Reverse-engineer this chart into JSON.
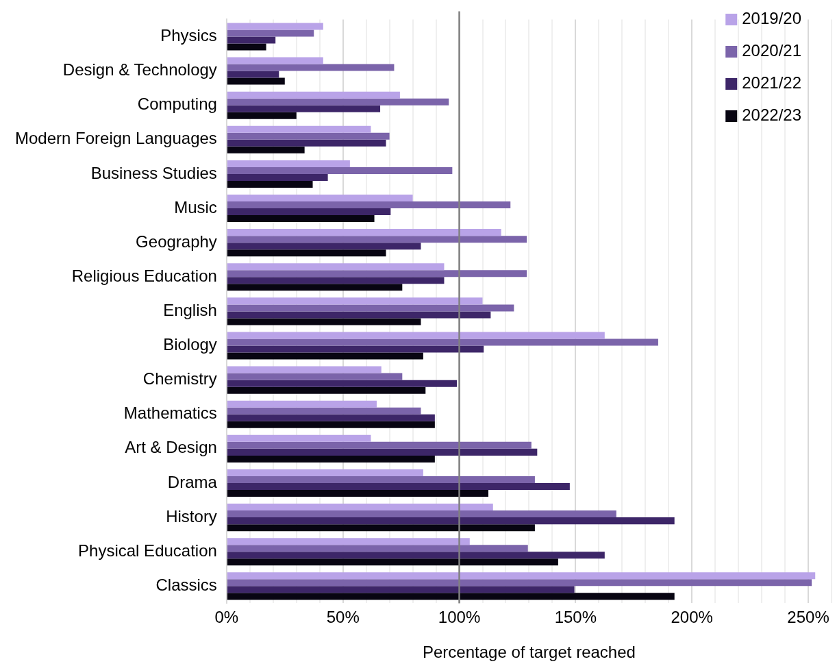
{
  "chart_data": {
    "type": "bar",
    "orientation": "horizontal",
    "xlabel": "Percentage of target reached",
    "categories": [
      "Physics",
      "Design & Technology",
      "Computing",
      "Modern Foreign Languages",
      "Business Studies",
      "Music",
      "Geography",
      "Religious Education",
      "English",
      "Biology",
      "Chemistry",
      "Mathematics",
      "Art & Design",
      "Drama",
      "History",
      "Physical Education",
      "Classics"
    ],
    "series": [
      {
        "name": "2019/20",
        "color": "#b9a3e8",
        "values": [
          41.5,
          41.5,
          74.5,
          62,
          53,
          80,
          118,
          93.5,
          110,
          162.5,
          66.5,
          64.5,
          62,
          84.5,
          114.5,
          104.5,
          253
        ]
      },
      {
        "name": "2020/21",
        "color": "#7b64aa",
        "values": [
          37.5,
          72,
          95.5,
          70,
          97,
          122,
          129,
          129,
          123.5,
          185.5,
          75.5,
          83.5,
          131,
          132.5,
          167.5,
          129.5,
          251.5
        ]
      },
      {
        "name": "2021/22",
        "color": "#3d2668",
        "values": [
          21,
          22.5,
          66,
          68.5,
          43.5,
          70.5,
          83.5,
          93.5,
          113.5,
          110.5,
          99,
          89.5,
          133.5,
          147.5,
          192.5,
          162.5,
          149.5
        ]
      },
      {
        "name": "2022/23",
        "color": "#080512",
        "values": [
          17,
          25,
          30,
          33.5,
          37,
          63.5,
          68.5,
          75.5,
          83.5,
          84.5,
          85.5,
          89.5,
          89.5,
          112.5,
          132.5,
          142.5,
          192.5
        ]
      }
    ],
    "xlim": [
      0,
      260
    ],
    "xticks": [
      {
        "value": 0,
        "label": "0%"
      },
      {
        "value": 10,
        "label": null
      },
      {
        "value": 20,
        "label": null
      },
      {
        "value": 30,
        "label": null
      },
      {
        "value": 40,
        "label": null
      },
      {
        "value": 50,
        "label": "50%"
      },
      {
        "value": 60,
        "label": null
      },
      {
        "value": 70,
        "label": null
      },
      {
        "value": 80,
        "label": null
      },
      {
        "value": 90,
        "label": null
      },
      {
        "value": 100,
        "label": "100%"
      },
      {
        "value": 110,
        "label": null
      },
      {
        "value": 120,
        "label": null
      },
      {
        "value": 130,
        "label": null
      },
      {
        "value": 140,
        "label": null
      },
      {
        "value": 150,
        "label": "150%"
      },
      {
        "value": 160,
        "label": null
      },
      {
        "value": 170,
        "label": null
      },
      {
        "value": 180,
        "label": null
      },
      {
        "value": 190,
        "label": null
      },
      {
        "value": 200,
        "label": "200%"
      },
      {
        "value": 210,
        "label": null
      },
      {
        "value": 220,
        "label": null
      },
      {
        "value": 230,
        "label": null
      },
      {
        "value": 240,
        "label": null
      },
      {
        "value": 250,
        "label": "250%"
      },
      {
        "value": 260,
        "label": null
      }
    ],
    "ref_lines": [
      {
        "axis": "x",
        "value": 100,
        "color": "#808080"
      }
    ],
    "grid": "x",
    "legend": "top right"
  }
}
